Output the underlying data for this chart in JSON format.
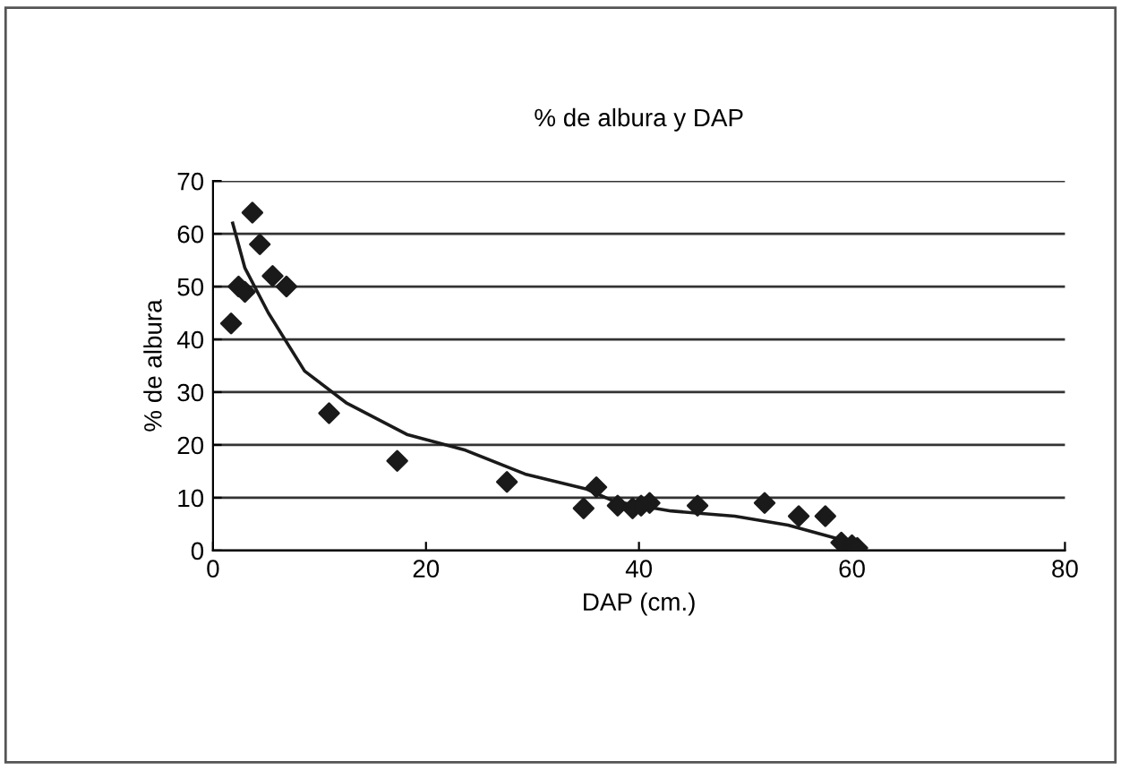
{
  "chart_data": {
    "type": "scatter",
    "title": "% de albura y DAP",
    "xlabel": "DAP (cm.)",
    "ylabel": "% de albura",
    "xlim": [
      0,
      80
    ],
    "xticks": [
      0,
      20,
      40,
      60,
      80
    ],
    "ylim": [
      0,
      70
    ],
    "yticks": [
      0,
      10,
      20,
      30,
      40,
      50,
      60,
      70
    ],
    "grid": "y",
    "legend": false,
    "marker": "diamond",
    "series": [
      {
        "color": "#1a1a1a",
        "x": [
          1.7,
          2.4,
          3.0,
          3.7,
          4.4,
          5.6,
          6.9,
          10.9,
          17.3,
          27.6,
          34.8,
          36.0,
          38.0,
          39.4,
          40.2,
          41.0,
          45.5,
          51.8,
          55.0,
          57.5,
          59.0,
          60.0,
          60.5
        ],
        "values": [
          43,
          50,
          49,
          64,
          58,
          52,
          50,
          26,
          17,
          13,
          8,
          12,
          8.5,
          8,
          8.5,
          9,
          8.5,
          9,
          6.5,
          6.5,
          1.5,
          1,
          0.5
        ]
      },
      {
        "type": "line",
        "color": "#1a1a1a",
        "marker": "none",
        "line_style": "solid",
        "x": [
          1.85,
          3,
          5.2,
          8.6,
          12.5,
          18.2,
          23.7,
          29.3,
          35,
          37.7,
          43,
          49,
          54,
          59.6
        ],
        "values": [
          62,
          53.5,
          45,
          34,
          28,
          22,
          19,
          14.5,
          11.7,
          9.3,
          7.5,
          6.5,
          4.8,
          1.7
        ]
      }
    ]
  }
}
